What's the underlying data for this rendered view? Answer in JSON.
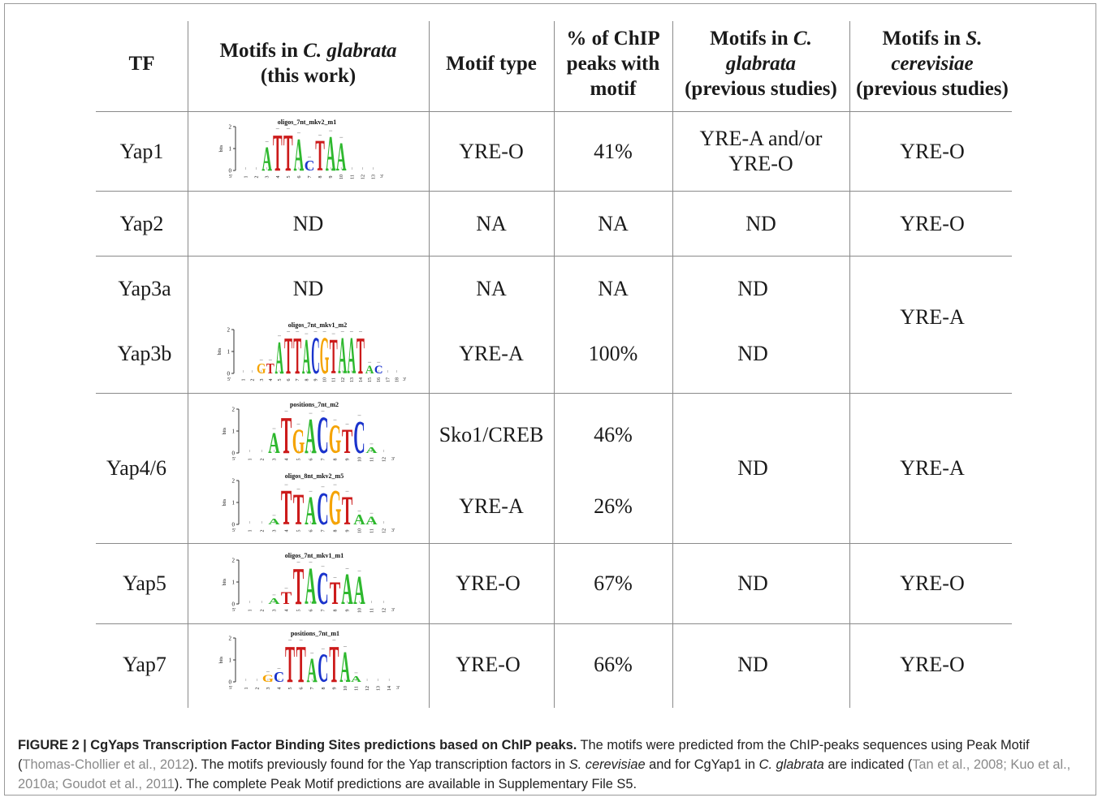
{
  "headers": {
    "tf": "TF",
    "motifs_cg_pre": "Motifs in ",
    "motifs_cg_species": "C. glabrata",
    "motifs_cg_post": "(this work)",
    "motif_type": "Motif type",
    "pct_line1": "% of ChIP",
    "pct_line2": "peaks with",
    "pct_line3": "motif",
    "prev_cg_pre": "Motifs in ",
    "prev_cg_species_a": "C.",
    "prev_cg_species_b": "glabrata",
    "prev_cg_post": "(previous studies)",
    "prev_sc_pre": "Motifs in ",
    "prev_sc_species_a": "S.",
    "prev_sc_species_b": "cerevisiae",
    "prev_sc_post": "(previous studies)"
  },
  "rows": {
    "yap1": {
      "tf": "Yap1",
      "type": "YRE-O",
      "pct": "41%",
      "prev_cg_a": "YRE-A and/or",
      "prev_cg_b": "YRE-O",
      "prev_sc": "YRE-O",
      "logo": {
        "title": "oligos_7nt_mkv2_m1",
        "positions": [
          "1",
          "2",
          "3",
          "4",
          "5",
          "6",
          "7",
          "8",
          "9",
          "10",
          "11",
          "12",
          "13"
        ],
        "letters": "ATTACTAAT"
      }
    },
    "yap2": {
      "tf": "Yap2",
      "motif": "ND",
      "type": "NA",
      "pct": "NA",
      "prev_cg": "ND",
      "prev_sc": "YRE-O"
    },
    "yap3a": {
      "tf": "Yap3a",
      "motif": "ND",
      "type": "NA",
      "pct": "NA",
      "prev_cg": "ND"
    },
    "yap3b": {
      "tf": "Yap3b",
      "type": "YRE-A",
      "pct": "100%",
      "prev_cg": "ND",
      "logo": {
        "title": "oligos_7nt_mkv1_m2",
        "positions": [
          "1",
          "2",
          "3",
          "4",
          "5",
          "6",
          "7",
          "8",
          "9",
          "10",
          "11",
          "12",
          "13",
          "14",
          "15",
          "16",
          "17",
          "18"
        ],
        "letters": "GTATTACGTAATAC"
      }
    },
    "yap3_sc": "YRE-A",
    "yap46": {
      "tf": "Yap4/6",
      "type1": "Sko1/CREB",
      "pct1": "46%",
      "type2": "YRE-A",
      "pct2": "26%",
      "prev_cg": "ND",
      "prev_sc": "YRE-A",
      "logo1": {
        "title": "positions_7nt_m2",
        "positions": [
          "1",
          "2",
          "3",
          "4",
          "5",
          "6",
          "7",
          "8",
          "9",
          "10",
          "11",
          "12"
        ],
        "letters": "ATGACGTCAT"
      },
      "logo2": {
        "title": "oligos_8nt_mkv2_m5",
        "positions": [
          "1",
          "2",
          "3",
          "4",
          "5",
          "6",
          "7",
          "8",
          "9",
          "10",
          "11",
          "12"
        ],
        "letters": "ATTACGTAAT"
      }
    },
    "yap5": {
      "tf": "Yap5",
      "type": "YRE-O",
      "pct": "67%",
      "prev_cg": "ND",
      "prev_sc": "YRE-O",
      "logo": {
        "title": "oligos_7nt_mkv1_m1",
        "positions": [
          "1",
          "2",
          "3",
          "4",
          "5",
          "6",
          "7",
          "8",
          "9",
          "10",
          "11",
          "12"
        ],
        "letters": "ATTACTAA"
      }
    },
    "yap7": {
      "tf": "Yap7",
      "type": "YRE-O",
      "pct": "66%",
      "prev_cg": "ND",
      "prev_sc": "YRE-O",
      "logo": {
        "title": "positions_7nt_m1",
        "positions": [
          "1",
          "2",
          "3",
          "4",
          "5",
          "6",
          "7",
          "8",
          "9",
          "10",
          "11",
          "12",
          "13",
          "14"
        ],
        "letters": "GCTTACTAAT"
      }
    }
  },
  "logo_axis": {
    "ylabel": "bits",
    "ticks": [
      "0",
      "1",
      "2"
    ],
    "five_prime": "5'",
    "three_prime": "3'"
  },
  "letter_colors": {
    "A": "#2eb82e",
    "C": "#1a33cc",
    "G": "#f5a300",
    "T": "#cc1a1a"
  },
  "caption": {
    "label": "FIGURE 2 | CgYaps Transcription Factor Binding Sites predictions based on ChIP peaks.",
    "t1": " The motifs were predicted from the ChIP-peaks sequences using Peak Motif (",
    "r1": "Thomas-Chollier et al., 2012",
    "t2": "). The motifs previously found for the Yap transcription factors in ",
    "sp1": "S. cerevisiae",
    "t3": " and for CgYap1 in ",
    "sp2": "C. glabrata",
    "t4": " are indicated (",
    "r2": "Tan et al., 2008; Kuo et al., 2010a; Goudot et al., 2011",
    "t5": "). The complete Peak Motif predictions are available in Supplementary File S5."
  }
}
